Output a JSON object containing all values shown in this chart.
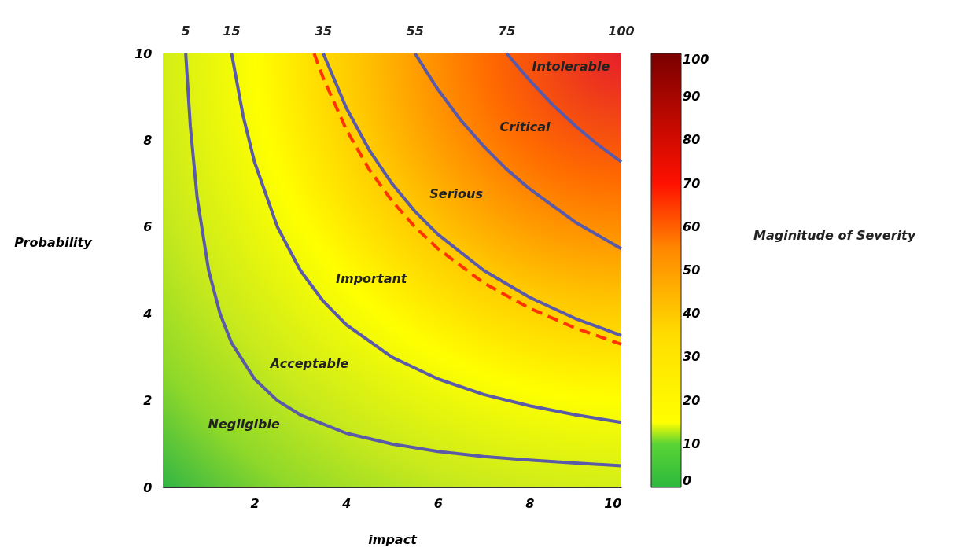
{
  "chart_data": {
    "type": "line",
    "xlabel": "impact",
    "ylabel": "Probability",
    "clabel": "Maginitude of Severity",
    "xlim": [
      0,
      10
    ],
    "ylim": [
      0,
      10
    ],
    "xticks": [
      2,
      4,
      6,
      8,
      10
    ],
    "yticks": [
      0,
      2,
      4,
      6,
      8,
      10
    ],
    "grid": false,
    "marker": "none",
    "clim": [
      0,
      100
    ],
    "cticks": [
      0,
      10,
      20,
      30,
      40,
      50,
      60,
      70,
      80,
      90,
      100
    ],
    "series": [
      {
        "color": "#5a5aa8",
        "x": [
          0.5,
          0.6,
          0.75,
          1,
          1.25,
          1.5,
          2,
          2.5,
          3,
          4,
          5,
          6,
          7,
          8,
          9,
          10
        ],
        "values": [
          10,
          8.33,
          6.67,
          5,
          4,
          3.33,
          2.5,
          2,
          1.67,
          1.25,
          1,
          0.83,
          0.71,
          0.63,
          0.56,
          0.5
        ]
      },
      {
        "color": "#5a5aa8",
        "x": [
          1.5,
          1.75,
          2,
          2.5,
          3,
          3.5,
          4,
          5,
          6,
          7,
          8,
          9,
          10
        ],
        "values": [
          10,
          8.57,
          7.5,
          6,
          5,
          4.29,
          3.75,
          3,
          2.5,
          2.14,
          1.88,
          1.67,
          1.5
        ]
      },
      {
        "color": "#ff3300",
        "line_style": "dashed",
        "x": [
          3.3,
          3.5,
          4,
          4.5,
          5,
          5.5,
          6,
          7,
          8,
          9,
          10
        ],
        "values": [
          10,
          9.43,
          8.25,
          7.33,
          6.6,
          6,
          5.5,
          4.71,
          4.13,
          3.67,
          3.3
        ]
      },
      {
        "color": "#5a5aa8",
        "x": [
          3.5,
          4,
          4.5,
          5,
          5.5,
          6,
          7,
          8,
          9,
          10
        ],
        "values": [
          10,
          8.75,
          7.78,
          7,
          6.36,
          5.83,
          5,
          4.38,
          3.89,
          3.5
        ]
      },
      {
        "color": "#5a5aa8",
        "x": [
          5.5,
          6,
          6.5,
          7,
          7.5,
          8,
          9,
          10
        ],
        "values": [
          10,
          9.17,
          8.46,
          7.86,
          7.33,
          6.88,
          6.11,
          5.5
        ]
      },
      {
        "color": "#5a5aa8",
        "x": [
          7.5,
          8,
          8.5,
          9,
          9.5,
          10
        ],
        "values": [
          10,
          9.38,
          8.82,
          8.33,
          7.89,
          7.5
        ]
      }
    ],
    "annotations": [
      {
        "text": "5",
        "x": 0.5,
        "y": 10
      },
      {
        "text": "15",
        "x": 1.5,
        "y": 10
      },
      {
        "text": "35",
        "x": 3.5,
        "y": 10
      },
      {
        "text": "55",
        "x": 5.5,
        "y": 10
      },
      {
        "text": "75",
        "x": 7.5,
        "y": 10
      },
      "100",
      "Intolerable",
      "Critical",
      "Serious",
      "Important",
      "Acceptable",
      "Negligible"
    ]
  }
}
